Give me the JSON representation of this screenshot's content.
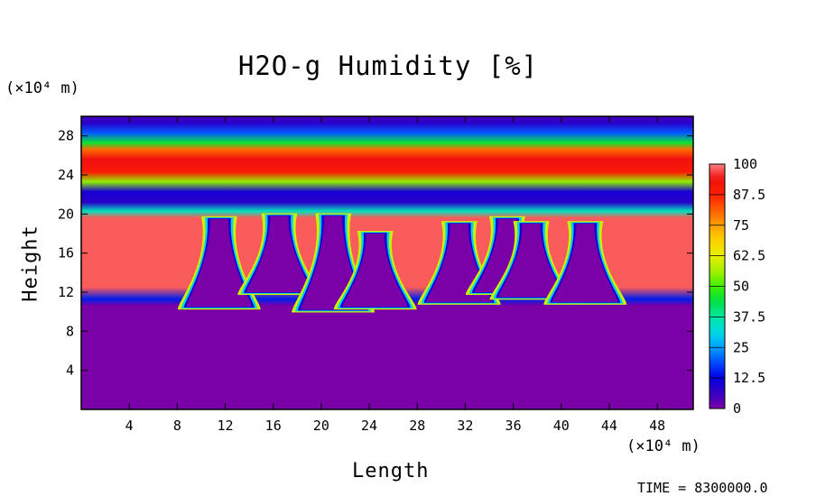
{
  "chart_data": {
    "type": "heatmap",
    "title": "H2O-g Humidity [%]",
    "xlabel": "Length",
    "ylabel": "Height",
    "x_unit": "(×10⁴ m)",
    "y_unit": "(×10⁴ m)",
    "xlim": [
      0,
      51
    ],
    "ylim": [
      0,
      30
    ],
    "x_ticks": [
      "4",
      "8",
      "12",
      "16",
      "20",
      "24",
      "28",
      "32",
      "36",
      "40",
      "44",
      "48"
    ],
    "y_ticks": [
      "4",
      "8",
      "12",
      "16",
      "20",
      "24",
      "28"
    ],
    "colorbar": {
      "min": 0,
      "max": 100,
      "labels": [
        "0",
        "12.5",
        "25",
        "37.5",
        "50",
        "62.5",
        "75",
        "87.5",
        "100"
      ]
    },
    "profile": [
      {
        "height": 0,
        "value": 0
      },
      {
        "height": 10.6,
        "value": 0
      },
      {
        "height": 11.3,
        "value": 15
      },
      {
        "height": 12.5,
        "value": 98
      },
      {
        "height": 19.6,
        "value": 98
      },
      {
        "height": 20.3,
        "value": 35
      },
      {
        "height": 21.2,
        "value": 8
      },
      {
        "height": 22.3,
        "value": 10
      },
      {
        "height": 23.3,
        "value": 55
      },
      {
        "height": 24.3,
        "value": 90
      },
      {
        "height": 25.6,
        "value": 94
      },
      {
        "height": 26.6,
        "value": 80
      },
      {
        "height": 27.3,
        "value": 45
      },
      {
        "height": 28.3,
        "value": 20
      },
      {
        "height": 29.3,
        "value": 8
      },
      {
        "height": 30,
        "value": 5
      }
    ],
    "dry_intrusions": [
      {
        "x": 11.5,
        "top": 19.5,
        "bottom": 10.5
      },
      {
        "x": 16.5,
        "top": 19.8,
        "bottom": 12.0
      },
      {
        "x": 21.0,
        "top": 19.8,
        "bottom": 10.2
      },
      {
        "x": 24.5,
        "top": 18.0,
        "bottom": 10.5
      },
      {
        "x": 31.5,
        "top": 19.0,
        "bottom": 11.0
      },
      {
        "x": 35.5,
        "top": 19.5,
        "bottom": 12.0
      },
      {
        "x": 37.5,
        "top": 19.0,
        "bottom": 11.5
      },
      {
        "x": 42.0,
        "top": 19.0,
        "bottom": 11.0
      }
    ]
  },
  "footer": {
    "time_label": "TIME = 8300000.0"
  }
}
